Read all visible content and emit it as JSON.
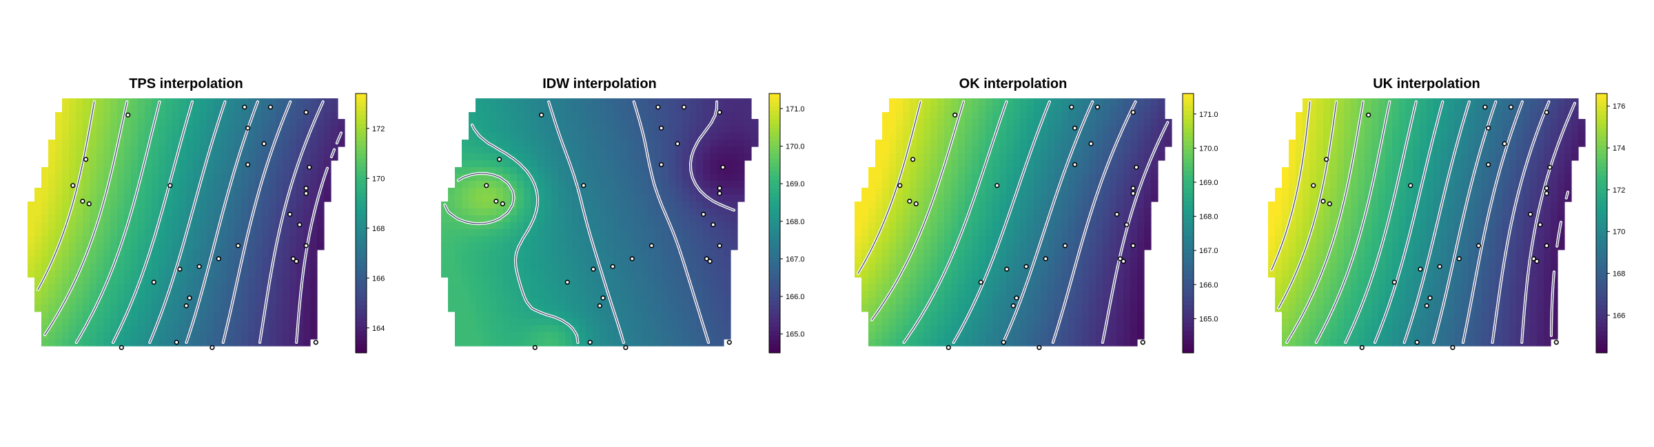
{
  "colors": {
    "palette": [
      "#440154",
      "#482878",
      "#3e4a89",
      "#31688e",
      "#26828e",
      "#1f9e89",
      "#35b779",
      "#6ece58",
      "#b5de2b",
      "#fde725"
    ],
    "contour_fill": "#ffffff",
    "contour_line": "#3b3b6b",
    "point_stroke": "#000000",
    "point_fill": "#ffffff"
  },
  "chart_data": [
    {
      "type": "heatmap",
      "title": "TPS interpolation",
      "colorbar": {
        "range": [
          163,
          173.4
        ],
        "ticks": [
          "164",
          "166",
          "168",
          "170",
          "172"
        ],
        "tick_values": [
          164,
          166,
          168,
          170,
          172
        ]
      },
      "surface": {
        "model": "gradient",
        "value_at_west": 172.6,
        "value_at_east": 163.4,
        "shape": 0.32
      },
      "contours": [
        164,
        165,
        166,
        167,
        168,
        169,
        170,
        171,
        172
      ],
      "legend": "right",
      "grid": false
    },
    {
      "type": "heatmap",
      "title": "IDW interpolation",
      "colorbar": {
        "range": [
          164.5,
          171.4
        ],
        "ticks": [
          "165.0",
          "166.0",
          "167.0",
          "168.0",
          "169.0",
          "170.0",
          "171.0"
        ],
        "tick_values": [
          165,
          166,
          167,
          168,
          169,
          170,
          171
        ]
      },
      "surface": {
        "model": "idw",
        "value_at_west": 169.2,
        "value_at_east": 165.4,
        "shape": 0.55
      },
      "contours": [
        165.5,
        166.5,
        167.5,
        168.5,
        169.5,
        170.5
      ],
      "legend": "right",
      "grid": false
    },
    {
      "type": "heatmap",
      "title": "OK interpolation",
      "colorbar": {
        "range": [
          164,
          171.6
        ],
        "ticks": [
          "165.0",
          "166.0",
          "167.0",
          "168.0",
          "169.0",
          "170.0",
          "171.0"
        ],
        "tick_values": [
          165,
          166,
          167,
          168,
          169,
          170,
          171
        ]
      },
      "surface": {
        "model": "gradient",
        "value_at_west": 171.2,
        "value_at_east": 164.3,
        "shape": 0.4
      },
      "contours": [
        165,
        166,
        167,
        168,
        169,
        170,
        171
      ],
      "legend": "right",
      "grid": false
    },
    {
      "type": "heatmap",
      "title": "UK interpolation",
      "colorbar": {
        "range": [
          164.2,
          176.6
        ],
        "ticks": [
          "166",
          "168",
          "170",
          "172",
          "174",
          "176"
        ],
        "tick_values": [
          166,
          168,
          170,
          172,
          174,
          176
        ]
      },
      "surface": {
        "model": "gradient",
        "value_at_west": 176,
        "value_at_east": 164.6,
        "shape": 0.28
      },
      "contours": [
        165,
        166,
        167,
        168,
        169,
        170,
        171,
        172,
        173,
        174,
        175,
        176
      ],
      "legend": "right",
      "grid": false
    }
  ]
}
